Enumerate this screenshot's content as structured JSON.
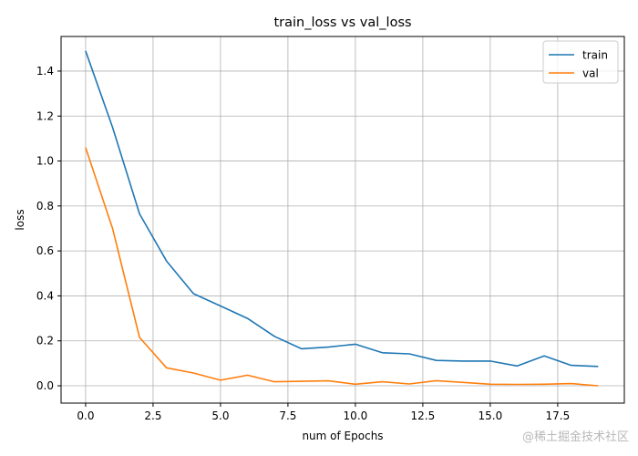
{
  "chart_data": {
    "type": "line",
    "title": "train_loss vs val_loss",
    "xlabel": "num of Epochs",
    "ylabel": "loss",
    "xlim": [
      -0.91,
      19.97
    ],
    "ylim": [
      -0.077,
      1.554
    ],
    "grid": true,
    "legend_placement": "top-right",
    "xticks": [
      0.0,
      2.5,
      5.0,
      7.5,
      10.0,
      12.5,
      15.0,
      17.5
    ],
    "xtick_labels": [
      "0.0",
      "2.5",
      "5.0",
      "7.5",
      "10.0",
      "12.5",
      "15.0",
      "17.5"
    ],
    "yticks": [
      0.0,
      0.2,
      0.4,
      0.6,
      0.8,
      1.0,
      1.2,
      1.4
    ],
    "ytick_labels": [
      "0.0",
      "0.2",
      "0.4",
      "0.6",
      "0.8",
      "1.0",
      "1.2",
      "1.4"
    ],
    "x": [
      0,
      1,
      2,
      3,
      4,
      5,
      6,
      7,
      8,
      9,
      10,
      11,
      12,
      13,
      14,
      15,
      16,
      17,
      18,
      19
    ],
    "series": [
      {
        "name": "train",
        "color": "#1f77b4",
        "values": [
          1.49,
          1.15,
          0.765,
          0.555,
          0.41,
          0.355,
          0.3,
          0.22,
          0.165,
          0.172,
          0.185,
          0.147,
          0.142,
          0.113,
          0.11,
          0.11,
          0.088,
          0.133,
          0.091,
          0.086
        ]
      },
      {
        "name": "val",
        "color": "#ff7f0e",
        "values": [
          1.06,
          0.7,
          0.215,
          0.08,
          0.057,
          0.025,
          0.047,
          0.018,
          0.02,
          0.022,
          0.007,
          0.018,
          0.008,
          0.023,
          0.015,
          0.007,
          0.006,
          0.007,
          0.01,
          0.0
        ]
      }
    ]
  },
  "watermark": "@稀土掘金技术社区"
}
